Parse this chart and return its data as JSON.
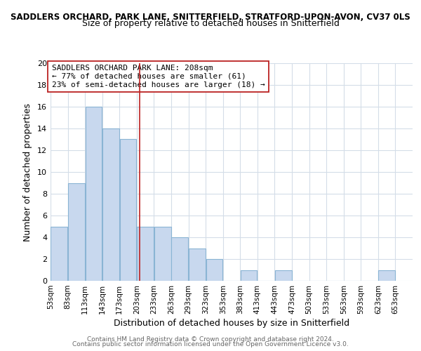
{
  "title": "SADDLERS ORCHARD, PARK LANE, SNITTERFIELD, STRATFORD-UPON-AVON, CV37 0LS",
  "subtitle": "Size of property relative to detached houses in Snitterfield",
  "xlabel": "Distribution of detached houses by size in Snitterfield",
  "ylabel": "Number of detached properties",
  "bar_color": "#c8d8ee",
  "bar_edge_color": "#8ab4d4",
  "grid_color": "#d4dde8",
  "vline_x": 208,
  "vline_color": "#bb2222",
  "bin_starts": [
    53,
    83,
    113,
    143,
    173,
    203,
    233,
    263,
    293,
    323,
    353,
    383,
    413,
    443,
    473,
    503,
    533,
    563,
    593,
    623
  ],
  "bin_labels": [
    "53sqm",
    "83sqm",
    "113sqm",
    "143sqm",
    "173sqm",
    "203sqm",
    "233sqm",
    "263sqm",
    "293sqm",
    "323sqm",
    "353sqm",
    "383sqm",
    "413sqm",
    "443sqm",
    "473sqm",
    "503sqm",
    "533sqm",
    "563sqm",
    "593sqm",
    "623sqm",
    "653sqm"
  ],
  "bar_heights": [
    5,
    9,
    16,
    14,
    13,
    5,
    5,
    4,
    3,
    2,
    0,
    1,
    0,
    1,
    0,
    0,
    0,
    0,
    0,
    1
  ],
  "ylim": [
    0,
    20
  ],
  "yticks": [
    0,
    2,
    4,
    6,
    8,
    10,
    12,
    14,
    16,
    18,
    20
  ],
  "annotation_title": "SADDLERS ORCHARD PARK LANE: 208sqm",
  "annotation_line1": "← 77% of detached houses are smaller (61)",
  "annotation_line2": "23% of semi-detached houses are larger (18) →",
  "footer1": "Contains HM Land Registry data © Crown copyright and database right 2024.",
  "footer2": "Contains public sector information licensed under the Open Government Licence v3.0.",
  "background_color": "#ffffff"
}
